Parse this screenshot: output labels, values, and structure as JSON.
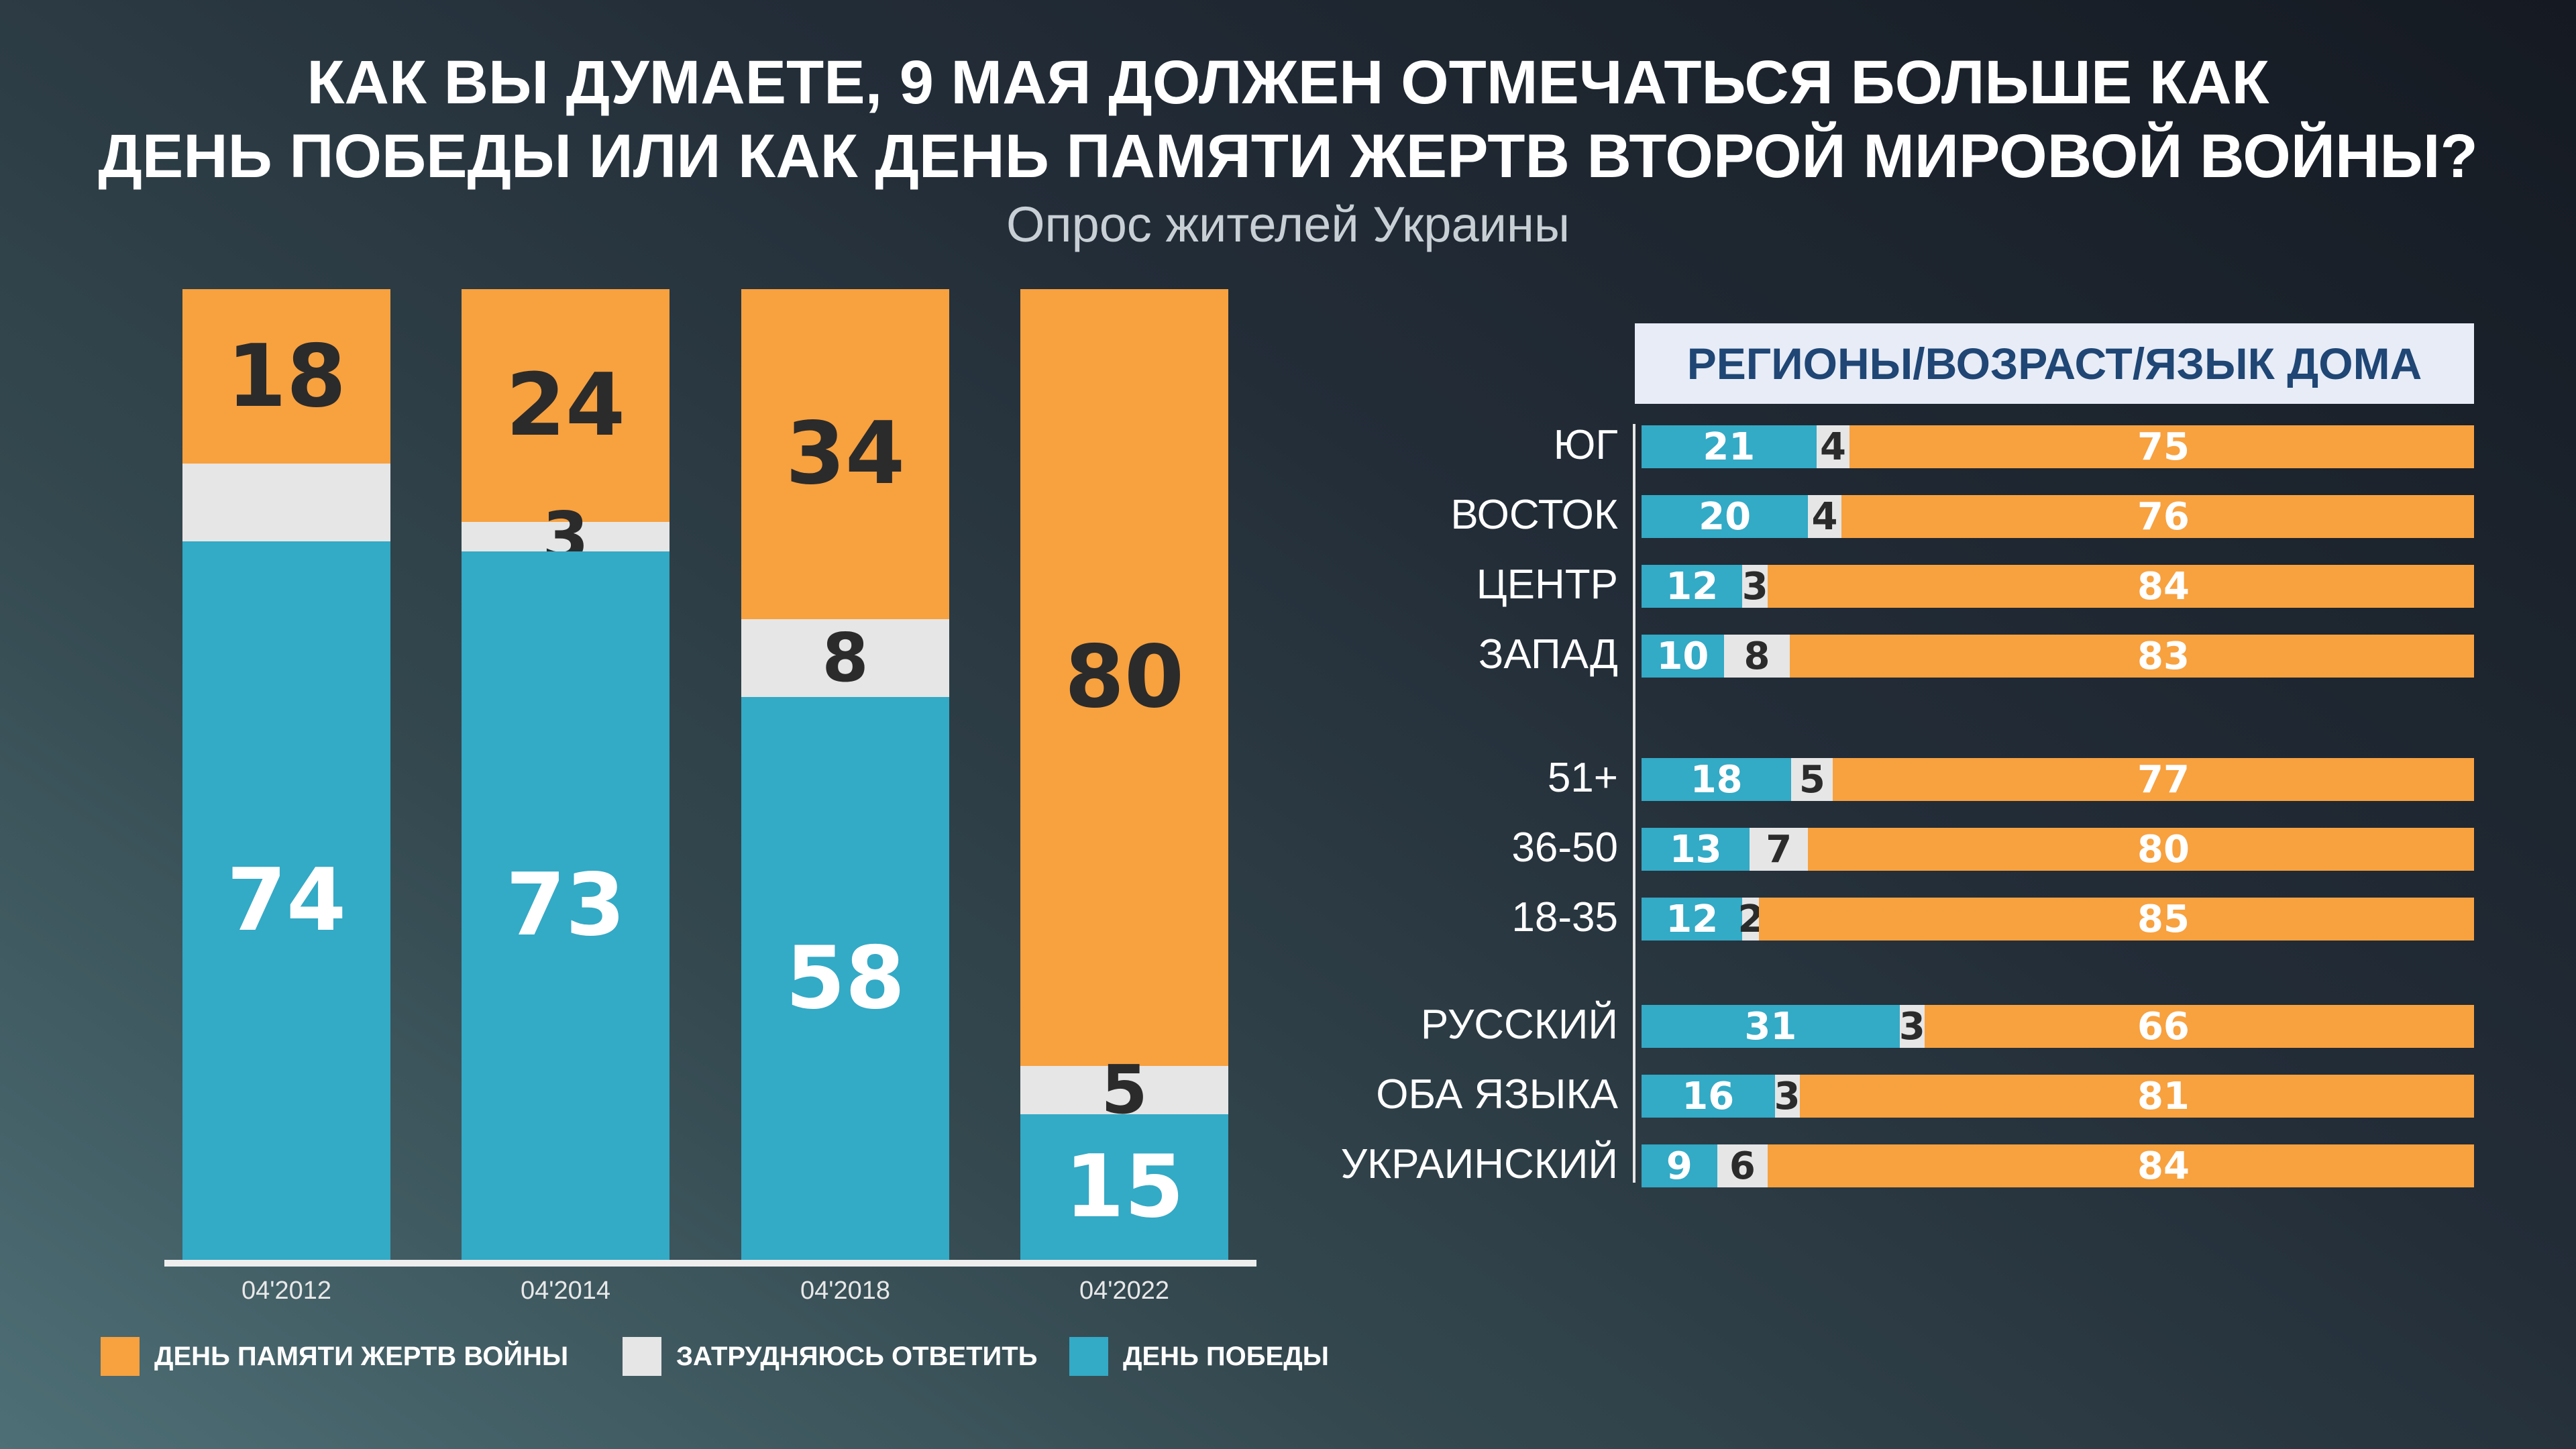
{
  "title_line1": "КАК ВЫ ДУМАЕТЕ, 9 МАЯ ДОЛЖЕН ОТМЕЧАТЬСЯ БОЛЬШЕ КАК",
  "title_line2": "ДЕНЬ ПОБЕДЫ ИЛИ КАК ДЕНЬ ПАМЯТИ ЖЕРТВ ВТОРОЙ МИРОВОЙ ВОЙНЫ?",
  "subtitle": "Опрос жителей Украины",
  "colors": {
    "memory": "#f8a13f",
    "undecided": "#e6e6e6",
    "victory": "#33aac6"
  },
  "chart_data": [
    {
      "type": "bar",
      "stacked": true,
      "orientation": "vertical",
      "categories": [
        "04'2012",
        "04'2014",
        "04'2018",
        "04'2022"
      ],
      "series": [
        {
          "name": "ДЕНЬ ПОБЕДЫ",
          "values": [
            74,
            73,
            58,
            15
          ]
        },
        {
          "name": "ЗАТРУДНЯЮСЬ ОТВЕТИТЬ",
          "values": [
            8,
            3,
            8,
            5
          ],
          "labels": [
            "",
            "3",
            "8",
            "5"
          ]
        },
        {
          "name": "ДЕНЬ ПАМЯТИ ЖЕРТВ ВОЙНЫ",
          "values": [
            18,
            24,
            34,
            80
          ]
        }
      ],
      "ylim": [
        0,
        100
      ],
      "legend": "bottom"
    },
    {
      "type": "bar",
      "stacked": true,
      "orientation": "horizontal",
      "title": "РЕГИОНЫ/ВОЗРАСТ/ЯЗЫК ДОМА",
      "categories": [
        "ЮГ",
        "ВОСТОК",
        "ЦЕНТР",
        "ЗАПАД",
        "51+",
        "36-50",
        "18-35",
        "РУССКИЙ",
        "ОБА ЯЗЫКА",
        "УКРАИНСКИЙ"
      ],
      "series": [
        {
          "name": "ДЕНЬ ПОБЕДЫ",
          "values": [
            21,
            20,
            12,
            10,
            18,
            13,
            12,
            31,
            16,
            9
          ]
        },
        {
          "name": "ЗАТРУДНЯЮСЬ ОТВЕТИТЬ",
          "values": [
            4,
            4,
            3,
            8,
            5,
            7,
            2,
            3,
            3,
            6
          ]
        },
        {
          "name": "ДЕНЬ ПАМЯТИ ЖЕРТВ ВОЙНЫ",
          "values": [
            75,
            76,
            84,
            83,
            77,
            80,
            85,
            66,
            81,
            84
          ]
        }
      ]
    }
  ]
}
